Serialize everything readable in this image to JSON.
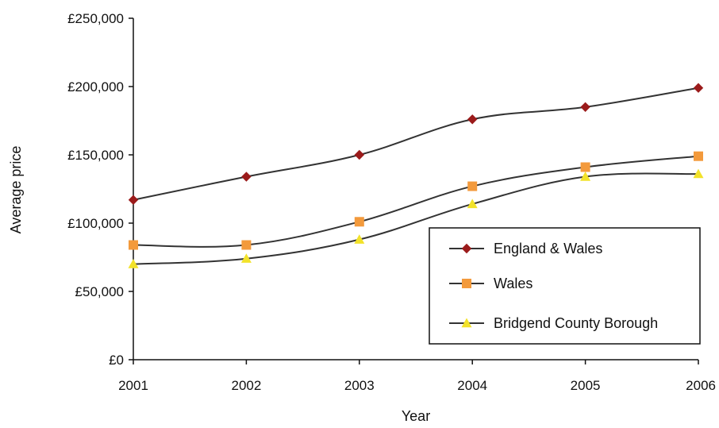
{
  "chart_data": {
    "type": "line",
    "title": "",
    "xlabel": "Year",
    "ylabel": "Average price",
    "x": [
      2001,
      2002,
      2003,
      2004,
      2005,
      2006
    ],
    "x_tick_labels": [
      "2001",
      "2002",
      "2003",
      "2004",
      "2005",
      "2006"
    ],
    "ylim": [
      0,
      250000
    ],
    "y_ticks": [
      0,
      50000,
      100000,
      150000,
      200000,
      250000
    ],
    "y_tick_labels": [
      "£0",
      "£50,000",
      "£100,000",
      "£150,000",
      "£200,000",
      "£250,000"
    ],
    "grid": false,
    "legend_position": "bottom-right",
    "series": [
      {
        "name": "England & Wales",
        "marker": "diamond",
        "color": "#9b1b1b",
        "values": [
          117000,
          134000,
          150000,
          176000,
          185000,
          199000
        ]
      },
      {
        "name": "Wales",
        "marker": "square",
        "color": "#f39a3c",
        "values": [
          84000,
          84000,
          101000,
          127000,
          141000,
          149000
        ]
      },
      {
        "name": "Bridgend County Borough",
        "marker": "triangle",
        "color": "#f2e22a",
        "values": [
          70000,
          74000,
          88000,
          114000,
          134000,
          136000
        ]
      }
    ],
    "line_color": "#333333"
  }
}
